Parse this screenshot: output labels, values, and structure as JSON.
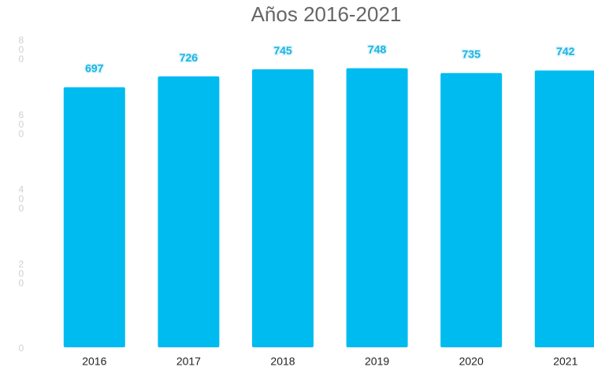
{
  "chart_data": {
    "type": "bar",
    "title": "Años 2016-2021",
    "categories": [
      "2016",
      "2017",
      "2018",
      "2019",
      "2020",
      "2021"
    ],
    "values": [
      697,
      726,
      745,
      748,
      735,
      742
    ],
    "color": "#00bbf0",
    "ylim": [
      0,
      800
    ],
    "yticks": [
      0,
      200,
      400,
      600,
      800
    ],
    "grid": false
  }
}
